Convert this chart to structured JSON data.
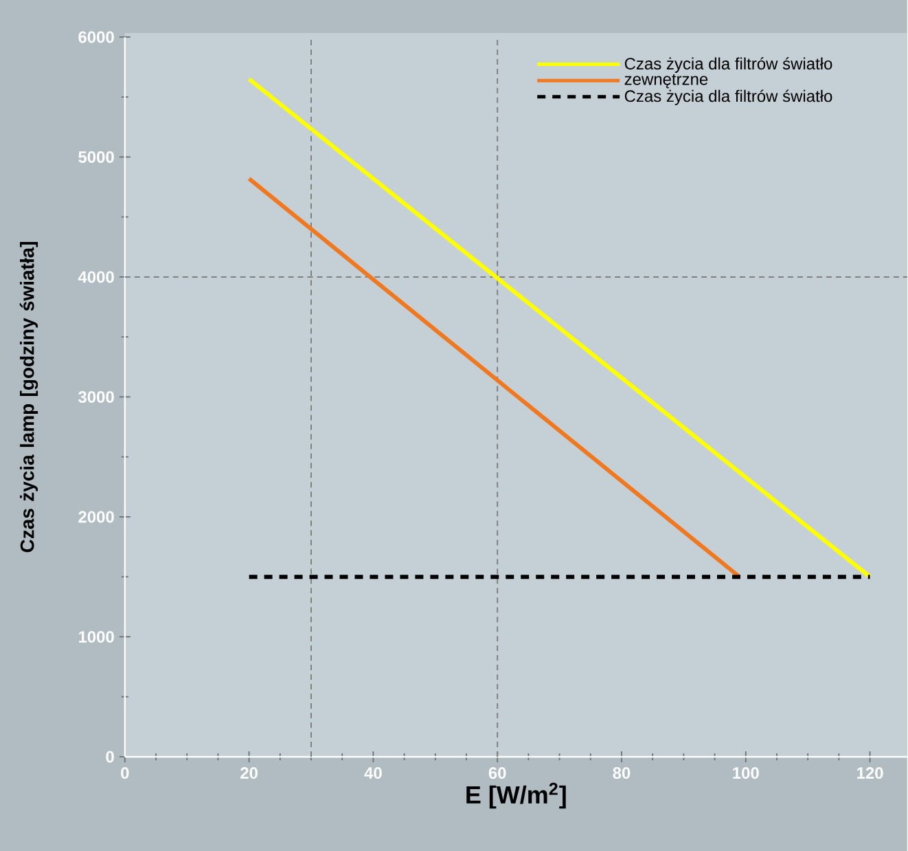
{
  "chart_data": {
    "type": "line",
    "xlabel": "E [W/m$^{2}$]",
    "ylabel": "Czas życia lamp [godziny światła]",
    "xlim": [
      0,
      126
    ],
    "ylim": [
      0,
      6000
    ],
    "xticks": [
      0,
      20,
      40,
      60,
      80,
      100,
      120
    ],
    "yticks": [
      0,
      1000,
      2000,
      3000,
      4000,
      5000,
      6000
    ],
    "grid": false,
    "legend": "top right",
    "marker": "none",
    "series": [
      {
        "name": "Czas życia dla filtrów światło",
        "color": "#ffff00",
        "line_style": "solid",
        "x": [
          20,
          120
        ],
        "values": [
          5650,
          1500
        ]
      },
      {
        "name": "zewnętrzne",
        "color": "#f07820",
        "line_style": "solid",
        "x": [
          20,
          99
        ],
        "values": [
          4820,
          1500
        ]
      },
      {
        "name": "Czas życia dla filtrów światło",
        "color": "#000000",
        "line_style": "dashed",
        "x": [
          20,
          120
        ],
        "values": [
          1500,
          1500
        ]
      }
    ],
    "ref_lines": [
      {
        "axis": "x",
        "value": 30,
        "color": "#808080",
        "line_style": "dashed"
      },
      {
        "axis": "x",
        "value": 60,
        "color": "#808080",
        "line_style": "dashed"
      },
      {
        "axis": "y",
        "value": 4000,
        "color": "#808080",
        "line_style": "dashed"
      }
    ]
  }
}
